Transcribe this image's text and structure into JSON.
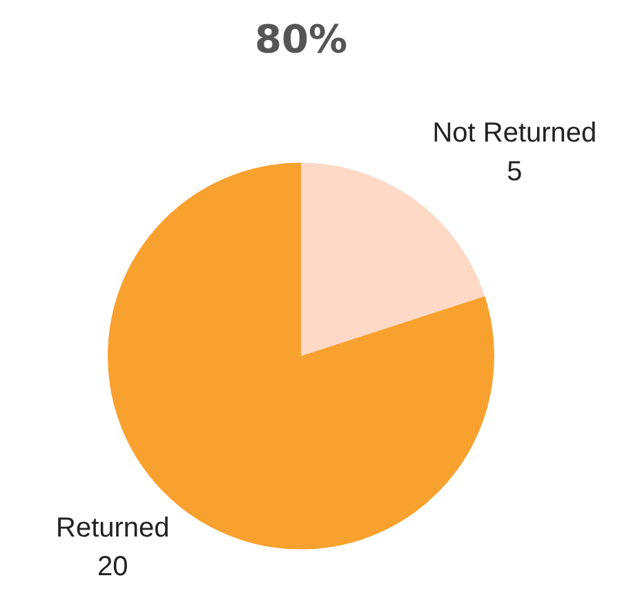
{
  "chart_data": {
    "type": "pie",
    "title": "80%",
    "categories": [
      "Not Returned",
      "Returned"
    ],
    "values": [
      5,
      20
    ],
    "colors": [
      "#fdd9c6",
      "#f9a12e"
    ],
    "data_labels": true,
    "legend": false
  }
}
